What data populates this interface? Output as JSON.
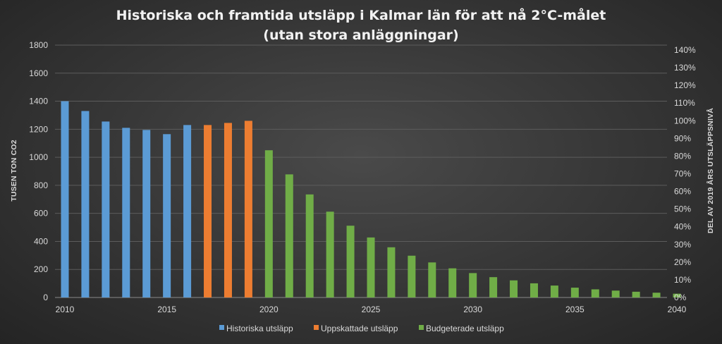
{
  "chart_data": {
    "type": "bar",
    "title_line1": "Historiska och framtida utsläpp i Kalmar län för att nå 2°C-målet",
    "title_line2": "(utan stora anläggningar)",
    "ylabel": "TUSEN TON CO2",
    "y2label": "DEL AV 2019 ÅRS UTSLÄPPSNIVÅ",
    "xlabel": "",
    "ylim": [
      0,
      1800
    ],
    "y2lim": [
      0,
      1.4
    ],
    "y_ticks": [
      0,
      200,
      400,
      600,
      800,
      1000,
      1200,
      1400,
      1600,
      1800
    ],
    "y2_ticks": [
      "0%",
      "10%",
      "20%",
      "30%",
      "40%",
      "50%",
      "60%",
      "70%",
      "80%",
      "90%",
      "100%",
      "110%",
      "120%",
      "130%",
      "140%"
    ],
    "x_ticks": [
      2010,
      2015,
      2020,
      2025,
      2030,
      2035,
      2040
    ],
    "grid": "horizontal",
    "legend_position": "bottom",
    "series": [
      {
        "name": "Historiska utsläpp",
        "color": "#5b9bd5",
        "x": [
          2010,
          2011,
          2012,
          2013,
          2014,
          2015,
          2016
        ],
        "values": [
          1400,
          1330,
          1255,
          1210,
          1195,
          1165,
          1230
        ]
      },
      {
        "name": "Uppskattade utsläpp",
        "color": "#ed7d31",
        "x": [
          2017,
          2018,
          2019
        ],
        "values": [
          1230,
          1245,
          1260
        ]
      },
      {
        "name": "Budgeterade utsläpp",
        "color": "#70ad47",
        "x": [
          2020,
          2021,
          2022,
          2023,
          2024,
          2025,
          2026,
          2027,
          2028,
          2029,
          2030,
          2031,
          2032,
          2033,
          2034,
          2035,
          2036,
          2037,
          2038,
          2039,
          2040
        ],
        "values": [
          1050,
          878,
          735,
          612,
          512,
          428,
          358,
          298,
          250,
          208,
          174,
          145,
          122,
          101,
          85,
          70,
          58,
          49,
          41,
          34,
          27
        ]
      }
    ]
  }
}
